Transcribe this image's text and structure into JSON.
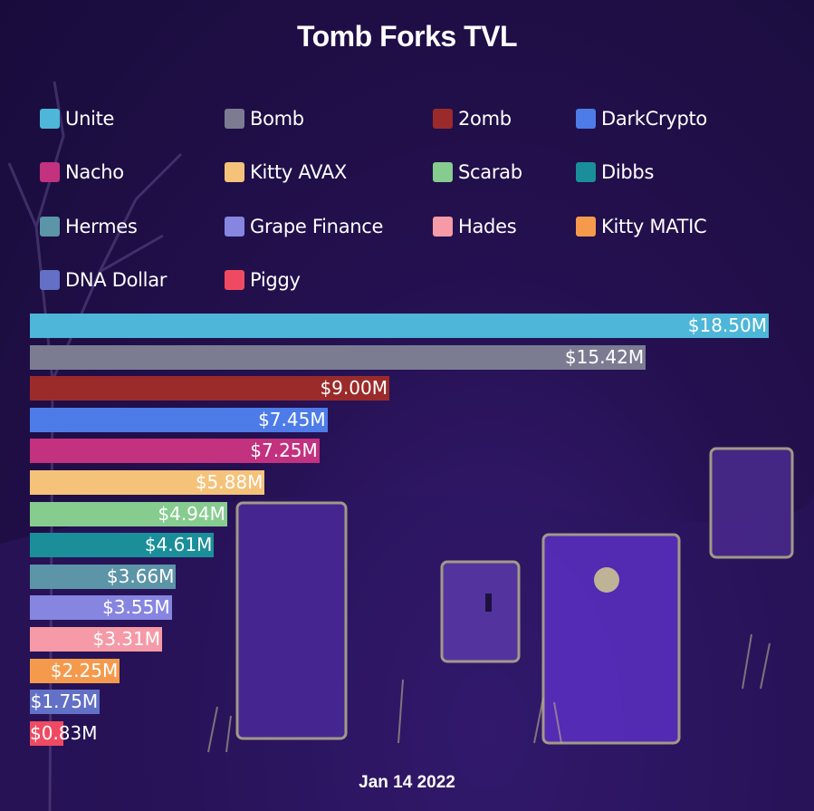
{
  "chart_data": {
    "type": "bar",
    "orientation": "horizontal",
    "title": "Tomb Forks TVL",
    "date": "Jan 14 2022",
    "legend_placement": "top",
    "grid": false,
    "xlim": [
      0,
      18.5
    ],
    "value_unit": "$M",
    "categories": [
      "Unite",
      "Bomb",
      "2omb",
      "DarkCrypto",
      "Nacho",
      "Kitty AVAX",
      "Scarab",
      "Dibbs",
      "Hermes",
      "Grape Finance",
      "Hades",
      "Kitty MATIC",
      "DNA Dollar",
      "Piggy"
    ],
    "values": [
      18.5,
      15.42,
      9.0,
      7.45,
      7.25,
      5.88,
      4.94,
      4.61,
      3.66,
      3.55,
      3.31,
      2.25,
      1.75,
      0.83
    ],
    "labels": [
      "$18.50M",
      "$15.42M",
      "$9.00M",
      "$7.45M",
      "$7.25M",
      "$5.88M",
      "$4.94M",
      "$4.61M",
      "$3.66M",
      "$3.55M",
      "$3.31M",
      "$2.25M",
      "$1.75M",
      "$0.83M"
    ],
    "colors": [
      "#4db6d9",
      "#7b7c92",
      "#9b2b2b",
      "#4d7ce8",
      "#c2327f",
      "#f5c27a",
      "#86cc8f",
      "#1a8f99",
      "#5c94a8",
      "#8685e0",
      "#f59aa6",
      "#f59a4d",
      "#6270c6",
      "#f04a62"
    ]
  }
}
